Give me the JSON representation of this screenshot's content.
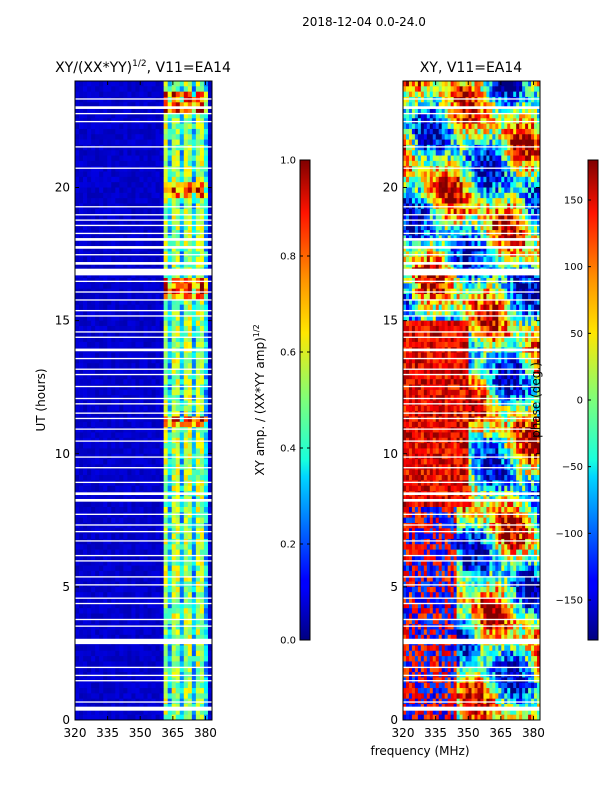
{
  "suptitle": "2018-12-04 0.0-24.0",
  "shared_xlabel": "frequency (MHz)",
  "chart_data": [
    {
      "type": "heatmap",
      "title_main": "XY/(XX*YY)",
      "title_exp": "1/2",
      "title_suffix": ", V11=EA14",
      "x_ticks": [
        320,
        335,
        350,
        365,
        380
      ],
      "xlim": [
        320,
        383
      ],
      "y_ticks": [
        0,
        5,
        10,
        15,
        20
      ],
      "ylim": [
        0,
        24
      ],
      "ylabel": "UT (hours)",
      "colormap": "jet",
      "colorbar": {
        "ticks": [
          "0.0",
          "0.2",
          "0.4",
          "0.6",
          "0.8",
          "1.0"
        ],
        "range": [
          0,
          1
        ],
        "label_main": "XY amp. / (XX*YY amp)",
        "label_exp": "1/2"
      },
      "blank_rows_ut": [
        [
          0.35,
          0.5
        ],
        [
          0.65,
          0.7
        ],
        [
          1.45,
          1.5
        ],
        [
          1.65,
          1.7
        ],
        [
          1.95,
          2.0
        ],
        [
          2.85,
          3.05
        ],
        [
          3.5,
          3.55
        ],
        [
          3.75,
          3.8
        ],
        [
          4.35,
          4.4
        ],
        [
          4.55,
          4.6
        ],
        [
          5.05,
          5.1
        ],
        [
          5.35,
          5.4
        ],
        [
          5.95,
          6.0
        ],
        [
          6.15,
          6.2
        ],
        [
          6.7,
          6.75
        ],
        [
          7.05,
          7.1
        ],
        [
          7.3,
          7.35
        ],
        [
          7.7,
          7.75
        ],
        [
          8.2,
          8.3
        ],
        [
          8.45,
          8.55
        ],
        [
          8.9,
          8.95
        ],
        [
          9.45,
          9.5
        ],
        [
          9.85,
          9.9
        ],
        [
          10.45,
          10.5
        ],
        [
          10.9,
          10.95
        ],
        [
          11.3,
          11.35
        ],
        [
          11.5,
          11.55
        ],
        [
          11.85,
          11.9
        ],
        [
          12.05,
          12.1
        ],
        [
          12.5,
          12.55
        ],
        [
          12.95,
          13.0
        ],
        [
          13.15,
          13.2
        ],
        [
          13.55,
          13.6
        ],
        [
          13.85,
          13.95
        ],
        [
          14.35,
          14.4
        ],
        [
          14.55,
          14.6
        ],
        [
          15.15,
          15.2
        ],
        [
          15.35,
          15.4
        ],
        [
          15.75,
          15.8
        ],
        [
          16.05,
          16.1
        ],
        [
          16.45,
          16.5
        ],
        [
          16.7,
          16.95
        ],
        [
          17.1,
          17.2
        ],
        [
          17.45,
          17.5
        ],
        [
          17.7,
          17.8
        ],
        [
          18.0,
          18.1
        ],
        [
          18.25,
          18.3
        ],
        [
          18.55,
          18.6
        ],
        [
          18.75,
          18.8
        ],
        [
          18.95,
          19.0
        ],
        [
          19.25,
          19.3
        ],
        [
          20.7,
          20.75
        ],
        [
          21.5,
          21.55
        ],
        [
          22.45,
          22.5
        ],
        [
          22.75,
          22.8
        ],
        [
          22.95,
          23.05
        ],
        [
          23.3,
          23.35
        ]
      ]
    },
    {
      "type": "heatmap",
      "title": "XY, V11=EA14",
      "x_ticks": [
        320,
        335,
        350,
        365,
        380
      ],
      "xlim": [
        320,
        383
      ],
      "y_ticks": [
        0,
        5,
        10,
        15,
        20
      ],
      "ylim": [
        0,
        24
      ],
      "colormap": "jet",
      "colorbar": {
        "ticks": [
          "150",
          "100",
          "50",
          "0",
          "−50",
          "−100",
          "−150"
        ],
        "tick_values": [
          150,
          100,
          50,
          0,
          -50,
          -100,
          -150
        ],
        "range": [
          -180,
          180
        ],
        "label": "phase (deg.)"
      },
      "blank_rows_ut": [
        [
          0.35,
          0.5
        ],
        [
          0.65,
          0.7
        ],
        [
          1.45,
          1.5
        ],
        [
          1.65,
          1.7
        ],
        [
          1.95,
          2.0
        ],
        [
          2.85,
          3.05
        ],
        [
          3.5,
          3.55
        ],
        [
          3.75,
          3.8
        ],
        [
          4.35,
          4.4
        ],
        [
          4.55,
          4.6
        ],
        [
          5.05,
          5.1
        ],
        [
          5.35,
          5.4
        ],
        [
          5.95,
          6.0
        ],
        [
          6.15,
          6.2
        ],
        [
          6.7,
          6.75
        ],
        [
          7.05,
          7.1
        ],
        [
          7.3,
          7.35
        ],
        [
          7.7,
          7.75
        ],
        [
          8.2,
          8.3
        ],
        [
          8.45,
          8.55
        ],
        [
          8.9,
          8.95
        ],
        [
          9.45,
          9.5
        ],
        [
          9.85,
          9.9
        ],
        [
          10.45,
          10.5
        ],
        [
          10.9,
          10.95
        ],
        [
          11.3,
          11.35
        ],
        [
          11.5,
          11.55
        ],
        [
          11.85,
          11.9
        ],
        [
          12.05,
          12.1
        ],
        [
          12.5,
          12.55
        ],
        [
          12.95,
          13.0
        ],
        [
          13.15,
          13.2
        ],
        [
          13.55,
          13.6
        ],
        [
          13.85,
          13.95
        ],
        [
          14.35,
          14.4
        ],
        [
          14.55,
          14.6
        ],
        [
          15.15,
          15.2
        ],
        [
          15.35,
          15.4
        ],
        [
          15.75,
          15.8
        ],
        [
          16.05,
          16.1
        ],
        [
          16.45,
          16.5
        ],
        [
          16.7,
          16.95
        ],
        [
          17.1,
          17.2
        ],
        [
          17.45,
          17.5
        ],
        [
          17.7,
          17.8
        ],
        [
          18.0,
          18.1
        ],
        [
          18.25,
          18.3
        ],
        [
          18.55,
          18.6
        ],
        [
          18.75,
          18.8
        ],
        [
          18.95,
          19.0
        ],
        [
          19.25,
          19.3
        ],
        [
          20.7,
          20.75
        ],
        [
          21.5,
          21.55
        ],
        [
          22.45,
          22.5
        ],
        [
          22.75,
          22.8
        ],
        [
          22.95,
          23.05
        ],
        [
          23.3,
          23.35
        ]
      ]
    }
  ]
}
